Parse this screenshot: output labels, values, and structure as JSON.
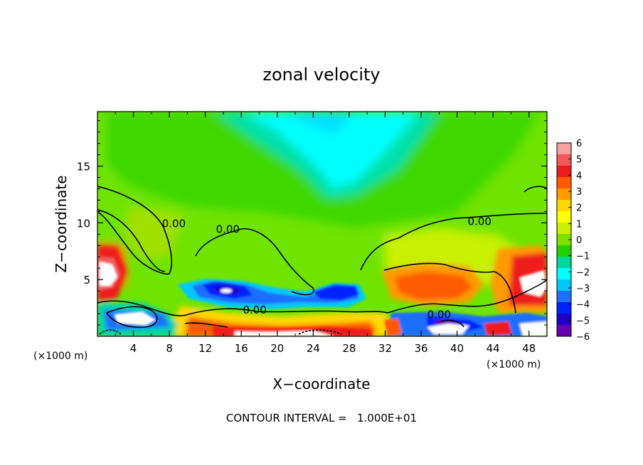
{
  "chart_data": {
    "type": "heatmap",
    "title": "zonal velocity",
    "xlabel": "X−coordinate",
    "ylabel": "Z−coordinate",
    "x_unit": "(×1000 m)",
    "x_unit_right": "(×1000 m)",
    "xlim": [
      0,
      50
    ],
    "ylim": [
      0,
      19.8
    ],
    "x_ticks": [
      4,
      8,
      12,
      16,
      20,
      24,
      28,
      32,
      36,
      40,
      44,
      48
    ],
    "y_ticks": [
      5,
      10,
      15
    ],
    "colorbar": {
      "ticks": [
        6,
        5,
        4,
        3,
        2,
        1,
        0,
        -1,
        -2,
        -3,
        -4,
        -5,
        -6
      ],
      "tick_labels": [
        "6",
        "5",
        "4",
        "3",
        "2",
        "1",
        "0",
        "−1",
        "−2",
        "−3",
        "−4",
        "−5",
        "−6"
      ],
      "colors": [
        "#f7a0a0",
        "#f25a5a",
        "#ee1c1c",
        "#ff5a00",
        "#ff9a00",
        "#ffd800",
        "#ffff00",
        "#c8f000",
        "#7ee000",
        "#22d000",
        "#00d8a0",
        "#00ffff",
        "#00c8ff",
        "#1e6eff",
        "#0020ff",
        "#1e00c8",
        "#6a00b0"
      ]
    },
    "contour_label": "0.00",
    "contour_labels_positions": [
      [
        8.5,
        9.8
      ],
      [
        14.5,
        9.3
      ],
      [
        17.5,
        2.2
      ],
      [
        42.5,
        10.0
      ],
      [
        38.0,
        1.8
      ]
    ],
    "annotation": "CONTOUR INTERVAL =   1.000E+01"
  }
}
